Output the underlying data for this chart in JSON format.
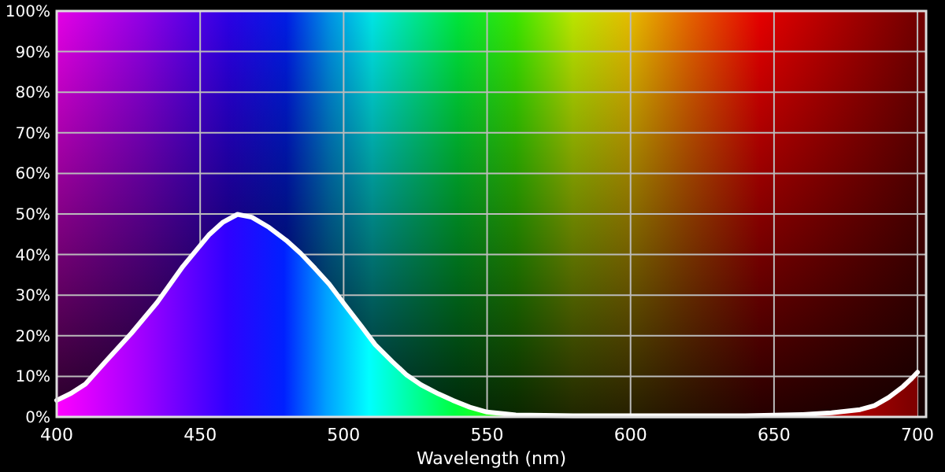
{
  "chart_data": {
    "type": "area",
    "xlabel": "Wavelength (nm)",
    "x": [
      400,
      405,
      410,
      417,
      426,
      435,
      444,
      453,
      458,
      463,
      468,
      474,
      480,
      485,
      490,
      495,
      500,
      506,
      511,
      517,
      522,
      527,
      533,
      538,
      544,
      550,
      560,
      580,
      600,
      620,
      640,
      660,
      670,
      680,
      685,
      690,
      695,
      698,
      700
    ],
    "values": [
      4.1,
      5.8,
      8.1,
      13.6,
      20.6,
      28.2,
      37.1,
      44.8,
      48,
      49.9,
      49.2,
      46.7,
      43.5,
      40.3,
      36.6,
      32.7,
      28,
      22.5,
      17.8,
      13.6,
      10.3,
      7.9,
      5.7,
      4.1,
      2.4,
      1.2,
      0.5,
      0.3,
      0.3,
      0.3,
      0.3,
      0.6,
      1,
      1.8,
      2.8,
      4.8,
      7.5,
      9.5,
      11
    ],
    "color": "#ffffff",
    "xlim": [
      400,
      703
    ],
    "ylim": [
      0,
      100
    ],
    "xticks": [
      400,
      450,
      500,
      550,
      600,
      650,
      700
    ],
    "yticks": [
      {
        "value": 0,
        "label": "0%"
      },
      {
        "value": 10,
        "label": "10%"
      },
      {
        "value": 20,
        "label": "20%"
      },
      {
        "value": 30,
        "label": "30%"
      },
      {
        "value": 40,
        "label": "40%"
      },
      {
        "value": 50,
        "label": "50%"
      },
      {
        "value": 60,
        "label": "60%"
      },
      {
        "value": 70,
        "label": "70%"
      },
      {
        "value": 80,
        "label": "80%"
      },
      {
        "value": 90,
        "label": "90%"
      },
      {
        "value": 100,
        "label": "100%"
      }
    ],
    "grid": true
  }
}
